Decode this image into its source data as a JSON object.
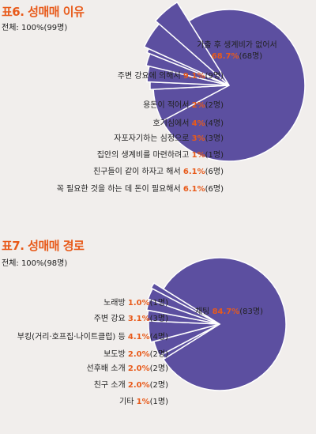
{
  "chart_data": [
    {
      "type": "pie",
      "title": "표6. 성매매 이유",
      "subtitle": "전체: 100%(99명)",
      "slices": [
        {
          "label": "가출 후 생계비가 없어서",
          "pct": "68.7%",
          "count": "(68명)",
          "value": 68.7
        },
        {
          "label": "주변 강요에 의해서",
          "pct": "9.1%",
          "count": "(9명)",
          "value": 9.1
        },
        {
          "label": "용돈이 적어서",
          "pct": "2%",
          "count": "(2명)",
          "value": 2.0
        },
        {
          "label": "호기심에서",
          "pct": "4%",
          "count": "(4명)",
          "value": 4.0
        },
        {
          "label": "자포자기하는 심정으로",
          "pct": "3%",
          "count": "(3명)",
          "value": 3.0
        },
        {
          "label": "집안의 생계비를 마련하려고",
          "pct": "1%",
          "count": "(1명)",
          "value": 1.0
        },
        {
          "label": "친구들이 같이 하자고 해서",
          "pct": "6.1%",
          "count": "(6명)",
          "value": 6.1
        },
        {
          "label": "꼭 필요한 것을 하는 데 돈이 필요해서",
          "pct": "6.1%",
          "count": "(6명)",
          "value": 6.1
        }
      ]
    },
    {
      "type": "pie",
      "title": "표7. 성매매 경로",
      "subtitle": "전체: 100%(98명)",
      "slices": [
        {
          "label": "채팅",
          "pct": "84.7%",
          "count": "(83명)",
          "value": 84.7
        },
        {
          "label": "노래방",
          "pct": "1.0%",
          "count": "(1명)",
          "value": 1.0
        },
        {
          "label": "주변 강요",
          "pct": "3.1%",
          "count": "(3명)",
          "value": 3.1
        },
        {
          "label": "부킹(거리·호프집·나이트클럽) 등",
          "pct": "4.1%",
          "count": "(4명)",
          "value": 4.1
        },
        {
          "label": "보도방",
          "pct": "2.0%",
          "count": "(2명)",
          "value": 2.0
        },
        {
          "label": "선후배 소개",
          "pct": "2.0%",
          "count": "(2명)",
          "value": 2.0
        },
        {
          "label": "친구 소개",
          "pct": "2.0%",
          "count": "(2명)",
          "value": 2.0
        },
        {
          "label": "기타",
          "pct": "1%",
          "count": "(1명)",
          "value": 1.0
        }
      ]
    }
  ],
  "colors": {
    "slice": "#5c4fa0",
    "edge": "#ffffff",
    "accent": "#e85a1a"
  }
}
